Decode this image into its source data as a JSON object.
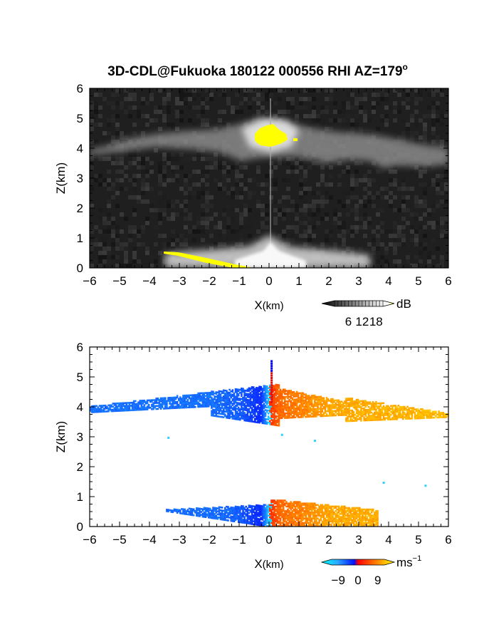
{
  "title": "3D-CDL@Fukuoka 180122 000556 RHI AZ=179",
  "title_superscript": "o",
  "chart_data": [
    {
      "type": "heatmap",
      "panel": "reflectivity",
      "xlabel_main": "X",
      "xlabel_unit": "(km)",
      "ylabel": "Z(km)",
      "xlim": [
        -6,
        6
      ],
      "ylim": [
        0,
        6
      ],
      "xticks": [
        "−6",
        "−5",
        "−4",
        "−3",
        "−2",
        "−1",
        "0",
        "1",
        "2",
        "3",
        "4",
        "5",
        "6"
      ],
      "yticks": [
        "0",
        "1",
        "2",
        "3",
        "4",
        "5",
        "6"
      ],
      "colorbar": {
        "unit": "dB",
        "ticks": [
          "6",
          "12",
          "18"
        ],
        "range": [
          0,
          21
        ]
      },
      "features": [
        {
          "name": "cloud-layer",
          "x_range": [
            -6,
            6
          ],
          "z_range": [
            3.5,
            4.6
          ],
          "value_db": 9
        },
        {
          "name": "core",
          "x": 0.15,
          "z": 4.4,
          "value_db": 20
        },
        {
          "name": "surface-clutter",
          "x_range": [
            -3.5,
            0.6
          ],
          "z_range": [
            0,
            0.5
          ],
          "value_db": 18
        }
      ],
      "colors": {
        "background": "#1e1e1e",
        "high": "#ffff00"
      }
    },
    {
      "type": "heatmap",
      "panel": "doppler-velocity",
      "xlabel_main": "X",
      "xlabel_unit": "(km)",
      "ylabel": "Z(km)",
      "xlim": [
        -6,
        6
      ],
      "ylim": [
        0,
        6
      ],
      "xticks": [
        "−6",
        "−5",
        "−4",
        "−3",
        "−2",
        "−1",
        "0",
        "1",
        "2",
        "3",
        "4",
        "5",
        "6"
      ],
      "yticks": [
        "0",
        "1",
        "2",
        "3",
        "4",
        "5",
        "6"
      ],
      "colorbar": {
        "unit": "ms",
        "unit_superscript": "−1",
        "ticks": [
          "−9",
          "0",
          "9"
        ],
        "range": [
          -12,
          12
        ]
      },
      "velocity_profile": [
        {
          "x": -6,
          "v": -6
        },
        {
          "x": -2,
          "v": -6
        },
        {
          "x": -1,
          "v": -7
        },
        {
          "x": -0.3,
          "v": -10
        },
        {
          "x": 0,
          "v": 0
        },
        {
          "x": 0.3,
          "v": 3
        },
        {
          "x": 2,
          "v": 6
        },
        {
          "x": 6,
          "v": 7
        }
      ],
      "colors": {
        "negative": "#1e8cff",
        "zero": "#e01010",
        "positive": "#ffc000"
      }
    }
  ]
}
